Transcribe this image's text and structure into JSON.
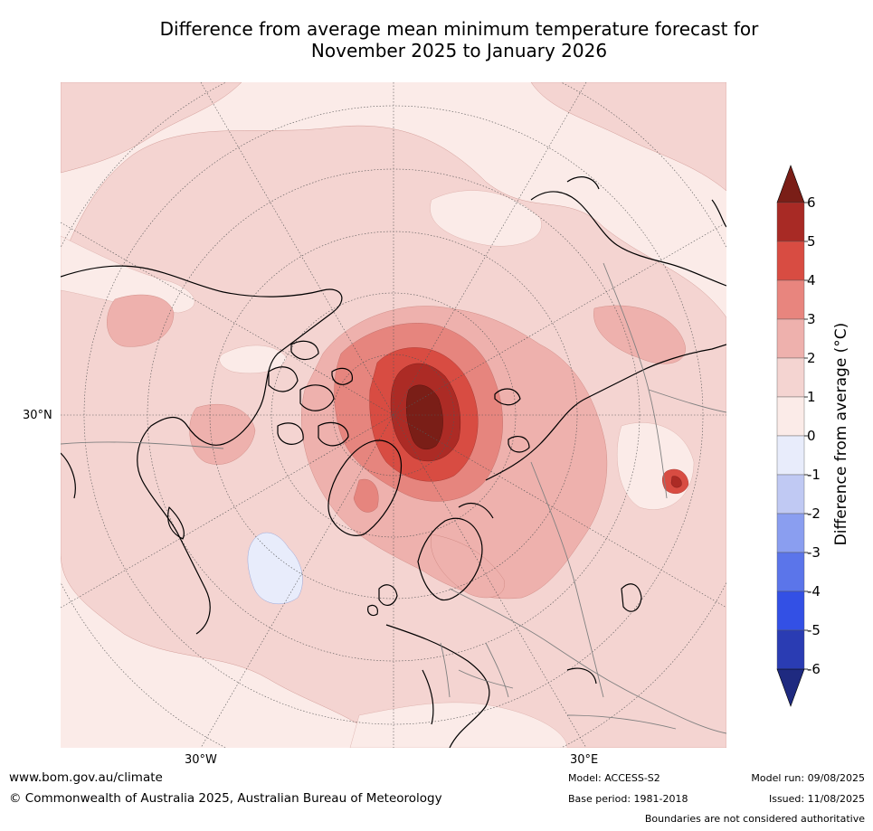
{
  "title": {
    "line1": "Difference from average mean minimum temperature forecast for",
    "line2": "November 2025 to January 2026"
  },
  "map": {
    "projection": "north polar stereographic",
    "graticule_labels": {
      "lat_30n": "30°N",
      "lon_30w": "30°W",
      "lon_30e": "30°E"
    },
    "colors": {
      "ocean_land_0_1": "#fbebe8",
      "1_2": "#f4d4d1",
      "2_3": "#eeb1ad",
      "3_4": "#e6857e",
      "4_5": "#d84c42",
      "5_6": "#ac2b25",
      "gt_6": "#7a1e17",
      "neg_0_1": "#e8ecfb",
      "coast": "#000000",
      "borders": "#808080"
    }
  },
  "colorbar": {
    "label": "Difference from average (°C)",
    "ticks": [
      "6",
      "5",
      "4",
      "3",
      "2",
      "1",
      "0",
      "-1",
      "-2",
      "-3",
      "-4",
      "-5",
      "-6"
    ],
    "bands": [
      "#a82a25",
      "#d84c42",
      "#e8857e",
      "#eeb1ad",
      "#f4d4d1",
      "#fbebe8",
      "#e8ecfb",
      "#c0c9f3",
      "#8a9ef0",
      "#5b75ea",
      "#3350e5",
      "#2a3cb3"
    ],
    "over_color": "#7a1e17",
    "under_color": "#1f2a80"
  },
  "footer": {
    "website": "www.bom.gov.au/climate",
    "copyright": "© Commonwealth of Australia 2025, Australian Bureau of Meteorology",
    "model": "Model: ACCESS-S2",
    "base_period": "Base period: 1981-2018",
    "model_run": "Model run: 09/08/2025",
    "issued": "Issued: 11/08/2025",
    "disclaimer": "Boundaries are not considered authoritative"
  }
}
